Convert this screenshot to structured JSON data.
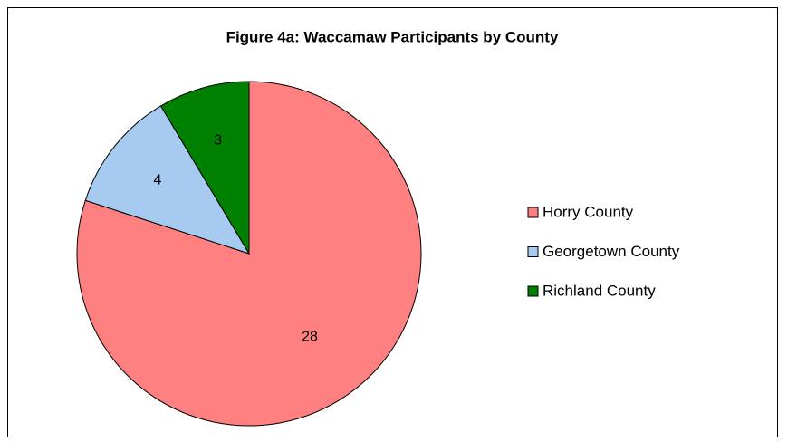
{
  "chart_data": {
    "type": "pie",
    "title": "Figure 4a: Waccamaw Participants by County",
    "categories": [
      "Horry County",
      "Georgetown County",
      "Richland County"
    ],
    "values": [
      28,
      4,
      3
    ],
    "colors": [
      "#ff8080",
      "#a6caf0",
      "#008000"
    ],
    "legend": "right"
  }
}
